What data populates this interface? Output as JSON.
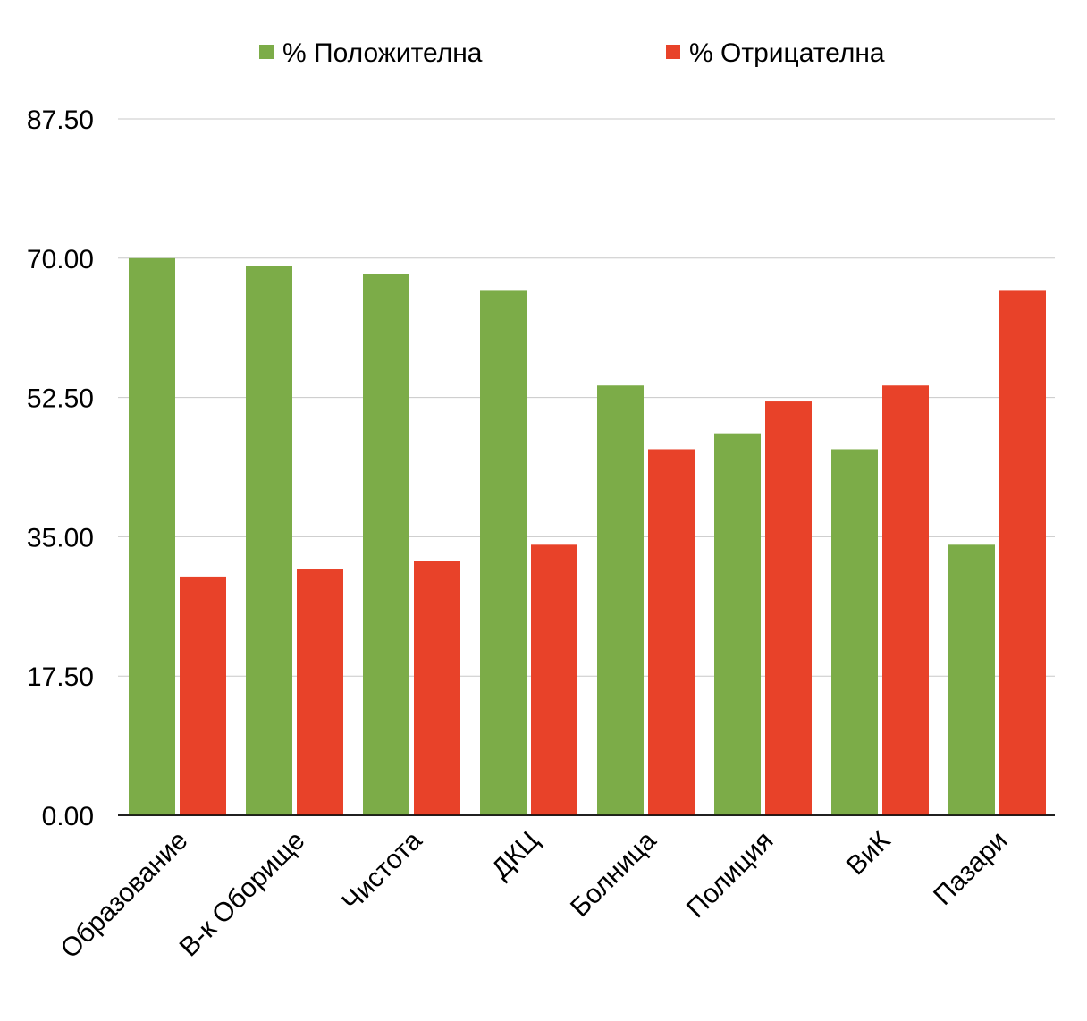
{
  "chart_data": {
    "type": "bar",
    "categories": [
      "Образование",
      "В-к Оборище",
      "Чистота",
      "ДКЦ",
      "Болница",
      "Полиция",
      "ВиК",
      "Пазари"
    ],
    "series": [
      {
        "name": "% Положителна",
        "color": "#7cac48",
        "values": [
          70,
          69,
          68,
          66,
          54,
          48,
          46,
          34
        ]
      },
      {
        "name": "% Отрицателна",
        "color": "#e84229",
        "values": [
          30,
          31,
          32,
          34,
          46,
          52,
          54,
          66
        ]
      }
    ],
    "yticks": [
      "0.00",
      "17.50",
      "35.00",
      "52.50",
      "70.00",
      "87.50"
    ],
    "ylim": [
      0,
      87.5
    ],
    "grid": true,
    "legend_position": "top"
  }
}
